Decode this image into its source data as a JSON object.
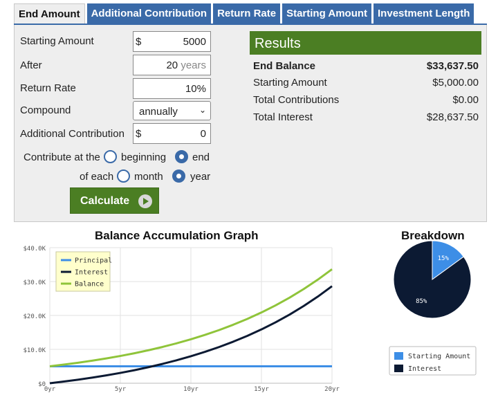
{
  "tabs": [
    {
      "label": "End Amount",
      "active": true
    },
    {
      "label": "Additional Contribution"
    },
    {
      "label": "Return Rate"
    },
    {
      "label": "Starting Amount"
    },
    {
      "label": "Investment Length"
    }
  ],
  "form": {
    "starting_amount": {
      "label": "Starting Amount",
      "prefix": "$",
      "value": "5000"
    },
    "after": {
      "label": "After",
      "value": "20",
      "unit": "years"
    },
    "return_rate": {
      "label": "Return Rate",
      "value": "10",
      "unit": "%"
    },
    "compound": {
      "label": "Compound",
      "value": "annually"
    },
    "additional": {
      "label": "Additional Contribution",
      "prefix": "$",
      "value": "0"
    },
    "contribute_at": {
      "label": "Contribute at the",
      "options": [
        "beginning",
        "end"
      ],
      "selected": "end"
    },
    "of_each": {
      "label": "of each",
      "options": [
        "month",
        "year"
      ],
      "selected": "year"
    },
    "calculate_label": "Calculate"
  },
  "results": {
    "title": "Results",
    "end_balance": {
      "label": "End Balance",
      "value": "$33,637.50"
    },
    "starting_amount": {
      "label": "Starting Amount",
      "value": "$5,000.00"
    },
    "total_contributions": {
      "label": "Total Contributions",
      "value": "$0.00"
    },
    "total_interest": {
      "label": "Total Interest",
      "value": "$28,637.50"
    }
  },
  "colors": {
    "tab_blue": "#3a6aa8",
    "green": "#4b7e23",
    "principal": "#3d8ee6",
    "interest": "#0c1a33",
    "balance": "#8fc43a"
  },
  "chart_data": [
    {
      "type": "line",
      "title": "Balance Accumulation Graph",
      "x": [
        0,
        1,
        2,
        3,
        4,
        5,
        6,
        7,
        8,
        9,
        10,
        11,
        12,
        13,
        14,
        15,
        16,
        17,
        18,
        19,
        20
      ],
      "x_tick_labels": [
        "0yr",
        "5yr",
        "10yr",
        "15yr",
        "20yr"
      ],
      "x_ticks": [
        0,
        5,
        10,
        15,
        20
      ],
      "y_tick_labels": [
        "$0",
        "$10.0K",
        "$20.0K",
        "$30.0K",
        "$40.0K"
      ],
      "y_ticks": [
        0,
        10000,
        20000,
        30000,
        40000
      ],
      "xlim": [
        0,
        20
      ],
      "ylim": [
        0,
        40000
      ],
      "legend_position": "top-left",
      "series": [
        {
          "name": "Principal",
          "color": "#3d8ee6",
          "values": [
            5000,
            5000,
            5000,
            5000,
            5000,
            5000,
            5000,
            5000,
            5000,
            5000,
            5000,
            5000,
            5000,
            5000,
            5000,
            5000,
            5000,
            5000,
            5000,
            5000,
            5000
          ]
        },
        {
          "name": "Interest",
          "color": "#0c1a33",
          "values": [
            0,
            500,
            1050,
            1655,
            2320,
            3053,
            3858,
            4744,
            5718,
            6790,
            7969,
            9266,
            10692,
            12261,
            13987,
            15886,
            17975,
            20272,
            22800,
            25580,
            28637.5
          ]
        },
        {
          "name": "Balance",
          "color": "#8fc43a",
          "values": [
            5000,
            5500,
            6050,
            6655,
            7320,
            8053,
            8858,
            9744,
            10718,
            11790,
            12969,
            14266,
            15692,
            17261,
            18987,
            20886,
            22975,
            25272,
            27800,
            30580,
            33637.5
          ]
        }
      ]
    },
    {
      "type": "pie",
      "title": "Breakdown",
      "slices": [
        {
          "name": "Starting Amount",
          "value": 15,
          "label": "15%",
          "color": "#3d8ee6"
        },
        {
          "name": "Interest",
          "value": 85,
          "label": "85%",
          "color": "#0c1a33"
        }
      ],
      "legend_position": "bottom"
    }
  ]
}
